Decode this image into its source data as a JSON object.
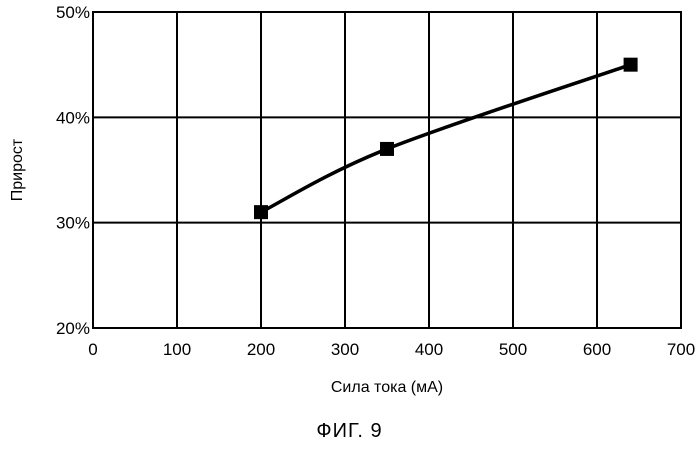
{
  "chart_data": {
    "type": "line",
    "xlabel": "Сила тока (мА)",
    "ylabel": "Прирост",
    "xlim": [
      0,
      700
    ],
    "ylim": [
      20,
      50
    ],
    "x_ticks": [
      "0",
      "100",
      "200",
      "300",
      "400",
      "500",
      "600",
      "700"
    ],
    "y_ticks": [
      "20%",
      "30%",
      "40%",
      "50%"
    ],
    "x_grid": [
      100,
      200,
      300,
      400,
      500,
      600
    ],
    "y_grid": [
      30,
      40
    ],
    "grid": true,
    "series": [
      {
        "x": [
          200,
          350,
          640
        ],
        "y": [
          31,
          37,
          45
        ],
        "marker": "square",
        "color": "#000000"
      }
    ]
  },
  "caption": "ФИГ. 9"
}
